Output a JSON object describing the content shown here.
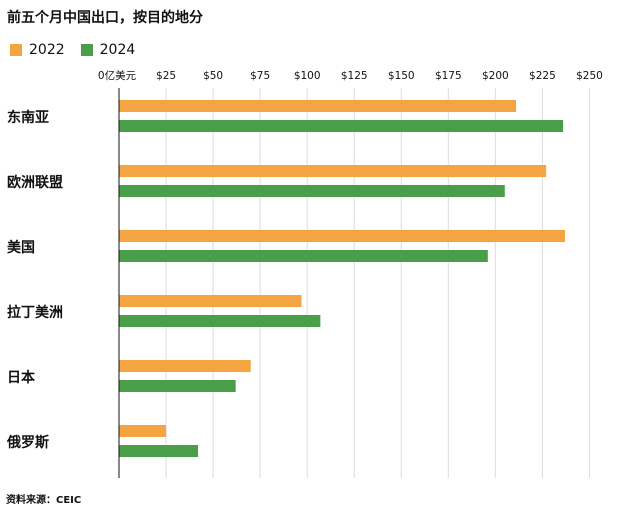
{
  "title": "前五个月中国出口，按目的地分",
  "source": "资料来源：CEIC",
  "legend": [
    {
      "label": "2022",
      "color": "#F5A442"
    },
    {
      "label": "2024",
      "color": "#4A9E4A"
    }
  ],
  "chart_data": {
    "type": "bar",
    "orientation": "horizontal",
    "title": "前五个月中国出口，按目的地分",
    "axis_unit_label": "0亿美元",
    "tick_labels": [
      "$25",
      "$50",
      "$75",
      "$100",
      "$125",
      "$150",
      "$175",
      "$200",
      "$225",
      "$250"
    ],
    "tick_values": [
      25,
      50,
      75,
      100,
      125,
      150,
      175,
      200,
      225,
      250
    ],
    "xlim": [
      0,
      250
    ],
    "grid": true,
    "legend_position": "top-left",
    "categories": [
      "东南亚",
      "欧洲联盟",
      "美国",
      "拉丁美洲",
      "日本",
      "俄罗斯"
    ],
    "series": [
      {
        "name": "2022",
        "color": "#F5A442",
        "values": [
          211,
          227,
          237,
          97,
          70,
          25
        ]
      },
      {
        "name": "2024",
        "color": "#4A9E4A",
        "values": [
          236,
          205,
          196,
          107,
          62,
          42
        ]
      }
    ]
  }
}
